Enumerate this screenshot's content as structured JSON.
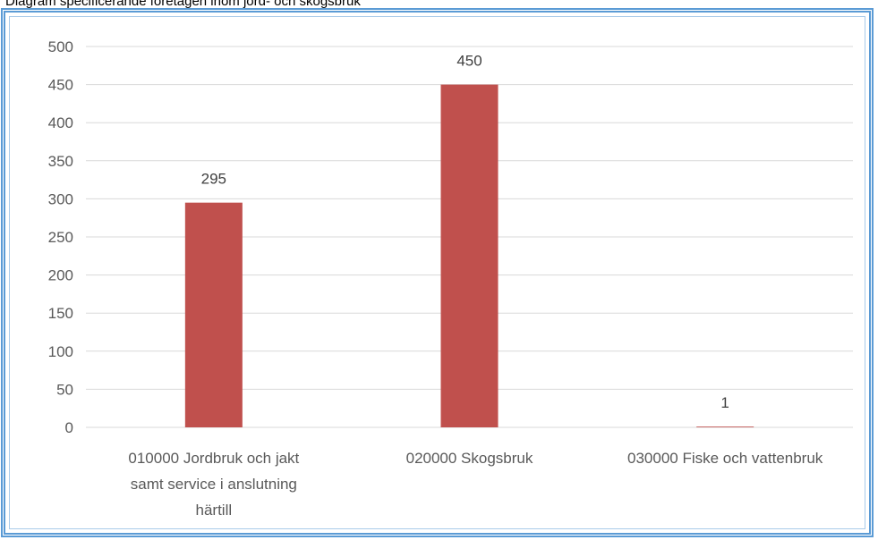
{
  "caption": "Diagram specificerande företagen inom jord- och skogsbruk",
  "colors": {
    "bar": "#c0504d",
    "grid": "#d9d9d9",
    "frame": "#5b9bd5"
  },
  "chart_data": {
    "type": "bar",
    "title": "",
    "xlabel": "",
    "ylabel": "",
    "categories": [
      [
        "010000 Jordbruk och jakt",
        "samt service i anslutning",
        "härtill"
      ],
      [
        "020000 Skogsbruk"
      ],
      [
        "030000 Fiske och vattenbruk"
      ]
    ],
    "values": [
      295,
      450,
      1
    ],
    "data_labels": [
      "295",
      "450",
      "1"
    ],
    "ylim": [
      0,
      500
    ],
    "yticks": [
      "0",
      "50",
      "100",
      "150",
      "200",
      "250",
      "300",
      "350",
      "400",
      "450",
      "500"
    ],
    "grid": true,
    "legend": "none"
  }
}
